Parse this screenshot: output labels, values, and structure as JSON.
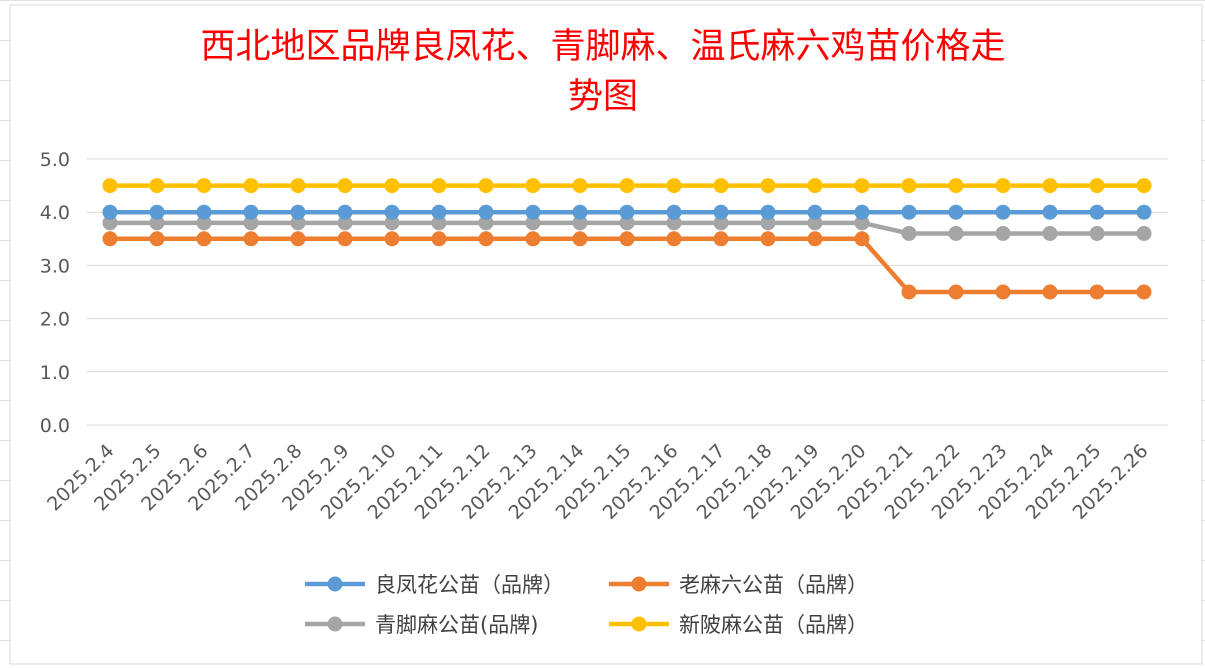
{
  "title_line1": "西北地区品牌良凤花、青脚麻、温氏麻六鸡苗价格走",
  "title_line2": "势图",
  "chart_data": {
    "type": "line",
    "title": "西北地区品牌良凤花、青脚麻、温氏麻六鸡苗价格走势图",
    "xlabel": "",
    "ylabel": "",
    "ylim": [
      0,
      5
    ],
    "yticks": [
      "0.0",
      "1.0",
      "2.0",
      "3.0",
      "4.0",
      "5.0"
    ],
    "grid": true,
    "legend_position": "bottom",
    "categories": [
      "2025.2.4",
      "2025.2.5",
      "2025.2.6",
      "2025.2.7",
      "2025.2.8",
      "2025.2.9",
      "2025.2.10",
      "2025.2.11",
      "2025.2.12",
      "2025.2.13",
      "2025.2.14",
      "2025.2.15",
      "2025.2.16",
      "2025.2.17",
      "2025.2.18",
      "2025.2.19",
      "2025.2.20",
      "2025.2.21",
      "2025.2.22",
      "2025.2.23",
      "2025.2.24",
      "2025.2.25",
      "2025.2.26"
    ],
    "series": [
      {
        "name": "良凤花公苗（品牌）",
        "color": "#5b9bd5",
        "values": [
          4,
          4,
          4,
          4,
          4,
          4,
          4,
          4,
          4,
          4,
          4,
          4,
          4,
          4,
          4,
          4,
          4,
          4,
          4,
          4,
          4,
          4,
          4
        ]
      },
      {
        "name": "老麻六公苗（品牌）",
        "color": "#ed7d31",
        "values": [
          3.5,
          3.5,
          3.5,
          3.5,
          3.5,
          3.5,
          3.5,
          3.5,
          3.5,
          3.5,
          3.5,
          3.5,
          3.5,
          3.5,
          3.5,
          3.5,
          3.5,
          2.5,
          2.5,
          2.5,
          2.5,
          2.5,
          2.5
        ]
      },
      {
        "name": "青脚麻公苗(品牌)",
        "color": "#a5a5a5",
        "values": [
          3.8,
          3.8,
          3.8,
          3.8,
          3.8,
          3.8,
          3.8,
          3.8,
          3.8,
          3.8,
          3.8,
          3.8,
          3.8,
          3.8,
          3.8,
          3.8,
          3.8,
          3.6,
          3.6,
          3.6,
          3.6,
          3.6,
          3.6
        ]
      },
      {
        "name": "新陂麻公苗（品牌）",
        "color": "#ffc000",
        "values": [
          4.5,
          4.5,
          4.5,
          4.5,
          4.5,
          4.5,
          4.5,
          4.5,
          4.5,
          4.5,
          4.5,
          4.5,
          4.5,
          4.5,
          4.5,
          4.5,
          4.5,
          4.5,
          4.5,
          4.5,
          4.5,
          4.5,
          4.5
        ]
      }
    ],
    "draw_order": [
      2,
      1,
      0,
      3
    ]
  }
}
